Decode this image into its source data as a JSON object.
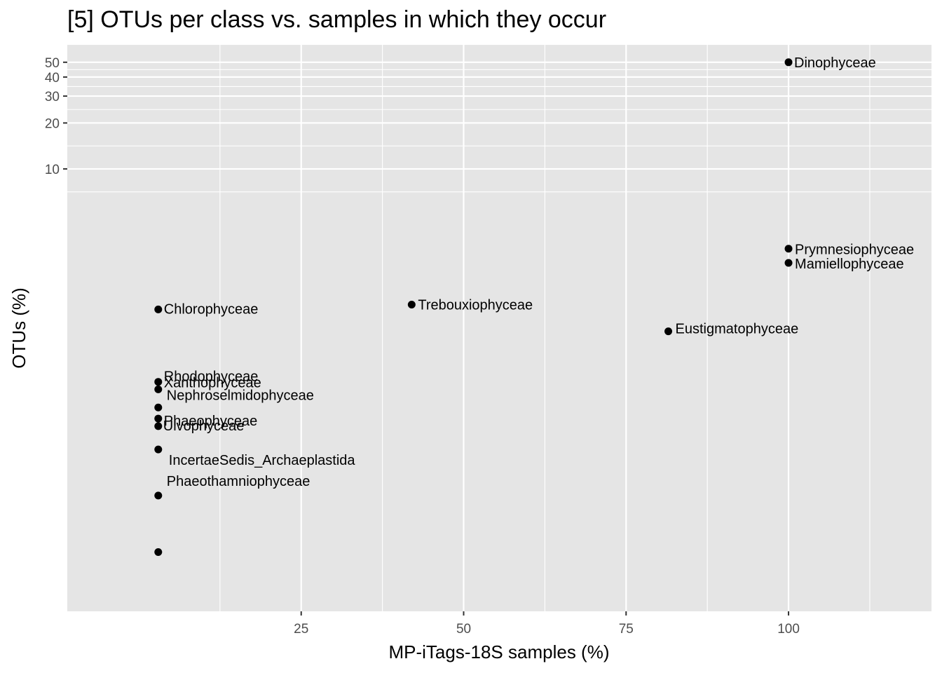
{
  "chart_data": {
    "type": "scatter",
    "title": "[5] OTUs per class vs. samples in which they occur",
    "xlabel": "MP-iTags-18S samples (%)",
    "ylabel": "OTUs (%)",
    "x_scale": "linear",
    "y_scale": "log10",
    "xlim": [
      -11,
      122
    ],
    "ylim": [
      0.0126,
      65
    ],
    "x_ticks": [
      25,
      50,
      75,
      100
    ],
    "x_tick_labels": [
      "25",
      "50",
      "75",
      "100"
    ],
    "y_ticks": [
      10,
      20,
      30,
      40,
      50
    ],
    "y_tick_labels": [
      "10",
      "20",
      "30",
      "40",
      "50"
    ],
    "grid": true,
    "legend": "none",
    "points": [
      {
        "label": "Dinophyceae",
        "x": 100,
        "y": 50
      },
      {
        "label": "Prymnesiophyceae",
        "x": 100,
        "y": 3.0
      },
      {
        "label": "Mamiellophyceae",
        "x": 100,
        "y": 2.42
      },
      {
        "label": "Trebouxiophyceae",
        "x": 42,
        "y": 1.29
      },
      {
        "label": "Chlorophyceae",
        "x": 3,
        "y": 1.2
      },
      {
        "label": "Eustigmatophyceae",
        "x": 81.5,
        "y": 0.862
      },
      {
        "label": "Rhodophyceae",
        "x": 3,
        "y": 0.402
      },
      {
        "label": "Xanthophyceae",
        "x": 3,
        "y": 0.359
      },
      {
        "label": "Nephroselmidophyceae",
        "x": 3,
        "y": 0.273
      },
      {
        "label": "Ulvophyceae",
        "x": 3,
        "y": 0.231
      },
      {
        "label": "Phaeophyceae",
        "x": 3,
        "y": 0.206
      },
      {
        "label": "IncertaeSedis_Archaeplastida",
        "x": 3,
        "y": 0.145
      },
      {
        "label": "Phaeothamniophyceae",
        "x": 3,
        "y": 0.0723
      }
    ],
    "point_color": "#000000",
    "panel_background": "#e5e5e5",
    "grid_color": "#ffffff"
  }
}
